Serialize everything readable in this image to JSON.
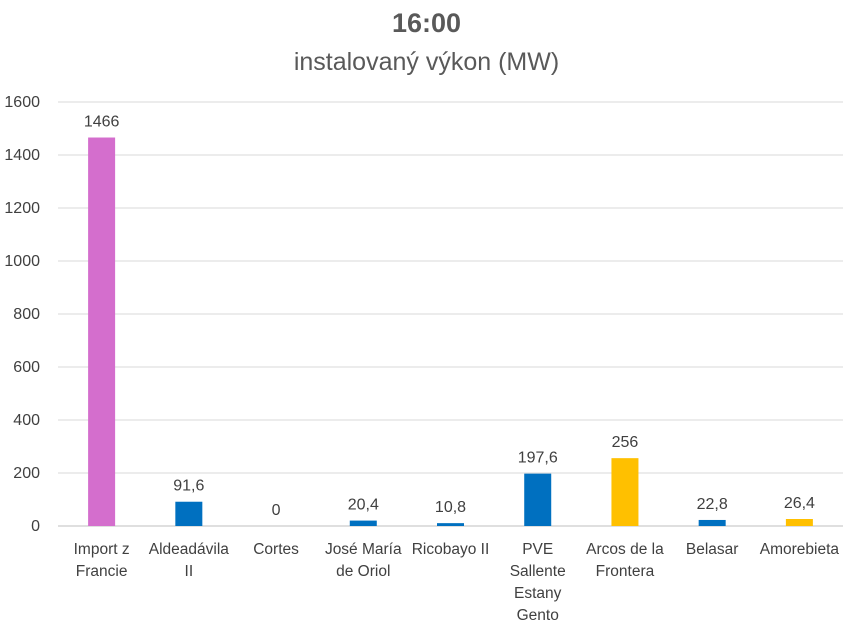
{
  "chart_data": {
    "type": "bar",
    "title": "16:00",
    "subtitle": "instalovaný výkon (MW)",
    "categories": [
      [
        "Import z",
        "Francie"
      ],
      [
        "Aldeadávila",
        "II"
      ],
      [
        "Cortes"
      ],
      [
        "José María",
        "de Oriol"
      ],
      [
        "Ricobayo II"
      ],
      [
        "PVE",
        "Sallente",
        "Estany",
        "Gento"
      ],
      [
        "Arcos de la",
        "Frontera"
      ],
      [
        "Belasar"
      ],
      [
        "Amorebieta"
      ]
    ],
    "values": [
      1466,
      91.6,
      0,
      20.4,
      10.8,
      197.6,
      256,
      22.8,
      26.4
    ],
    "data_labels": [
      "1466",
      "91,6",
      "0",
      "20,4",
      "10,8",
      "197,6",
      "256",
      "22,8",
      "26,4"
    ],
    "colors": [
      "#D46ECD",
      "#0070C0",
      "#0070C0",
      "#0070C0",
      "#0070C0",
      "#0070C0",
      "#FFC000",
      "#0070C0",
      "#FFC000"
    ],
    "ylim": [
      0,
      1600
    ],
    "yticks": [
      0,
      200,
      400,
      600,
      800,
      1000,
      1200,
      1400,
      1600
    ],
    "grid": true,
    "gridline_color": "#d9d9d9",
    "legend": "none"
  }
}
